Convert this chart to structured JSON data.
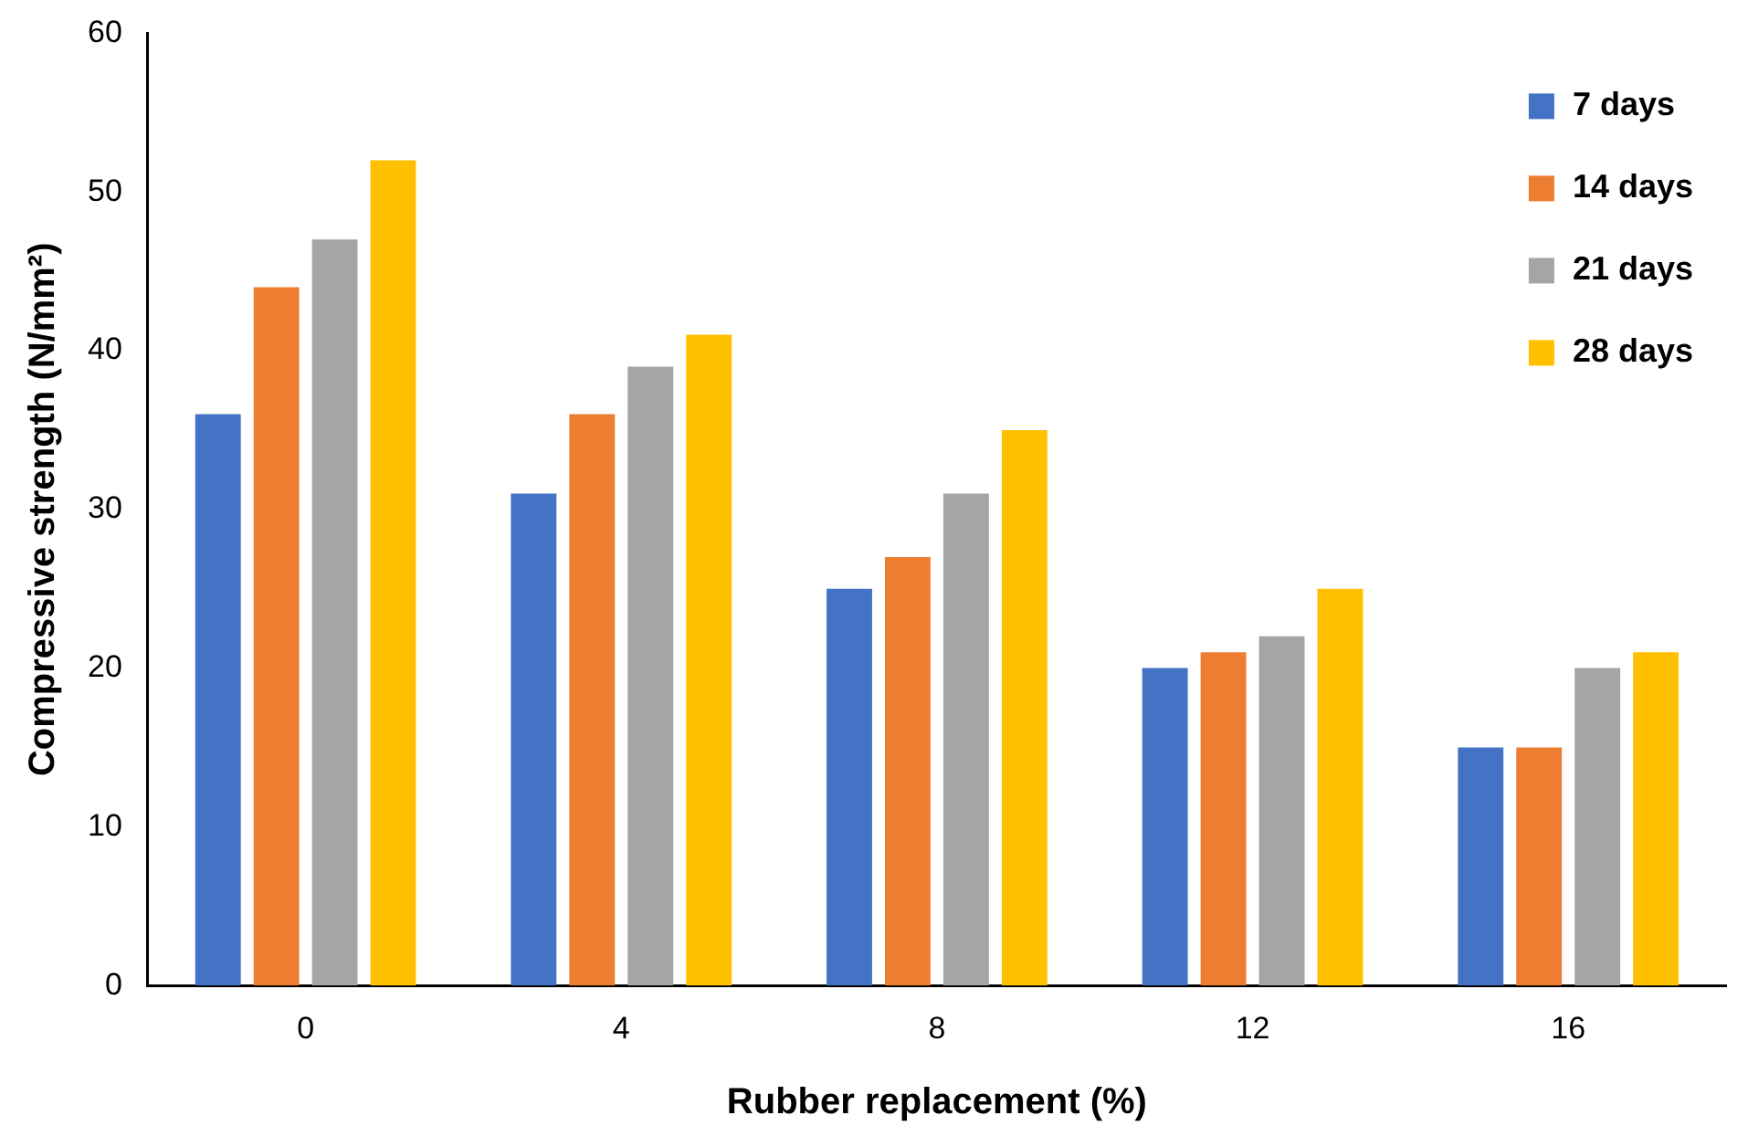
{
  "chart_data": {
    "type": "bar",
    "xlabel": "Rubber replacement (%)",
    "ylabel": "Compressive strength (N/mm²)",
    "categories": [
      "0",
      "4",
      "8",
      "12",
      "16"
    ],
    "series": [
      {
        "name": "7 days",
        "color": "#4472c4",
        "values": [
          36,
          31,
          25,
          20,
          15
        ]
      },
      {
        "name": "14 days",
        "color": "#ed7d31",
        "values": [
          44,
          36,
          27,
          21,
          15
        ]
      },
      {
        "name": "21 days",
        "color": "#a5a5a5",
        "values": [
          47,
          39,
          31,
          22,
          20
        ]
      },
      {
        "name": "28 days",
        "color": "#ffc000",
        "values": [
          52,
          41,
          35,
          25,
          21
        ]
      }
    ],
    "ylim": [
      0,
      60
    ],
    "yticks": [
      0,
      10,
      20,
      30,
      40,
      50,
      60
    ],
    "grid": false,
    "legend": "top right"
  }
}
